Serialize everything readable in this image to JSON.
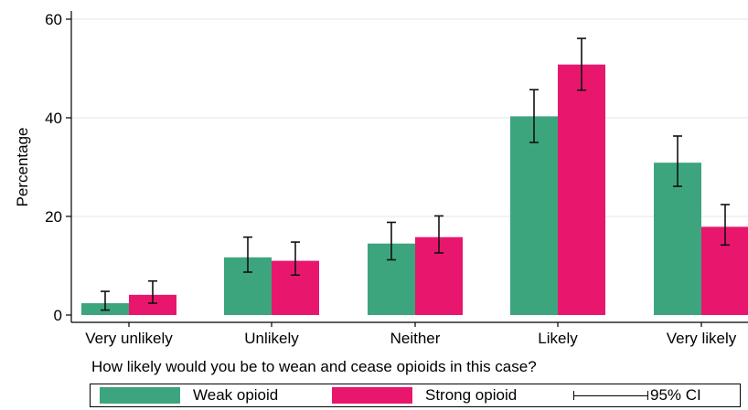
{
  "chart_data": {
    "type": "bar",
    "categories": [
      "Very unlikely",
      "Unlikely",
      "Neither",
      "Likely",
      "Very likely"
    ],
    "series": [
      {
        "name": "Weak opioid",
        "color": "#3da57e",
        "values": [
          2.4,
          11.7,
          14.5,
          40.3,
          30.9
        ],
        "ci_low": [
          1.0,
          8.7,
          11.2,
          35.0,
          26.1
        ],
        "ci_high": [
          4.8,
          15.8,
          18.8,
          45.7,
          36.3
        ]
      },
      {
        "name": "Strong opioid",
        "color": "#e8176d",
        "values": [
          4.1,
          11.0,
          15.8,
          50.8,
          17.9
        ],
        "ci_low": [
          2.4,
          8.1,
          12.6,
          45.6,
          14.2
        ],
        "ci_high": [
          6.9,
          14.8,
          20.1,
          56.1,
          22.4
        ]
      }
    ],
    "yticks": [
      0,
      20,
      40,
      60
    ],
    "ylim": [
      0,
      62
    ],
    "ylabel": "Percentage",
    "xlabel": "How likely would you be to wean and cease opioids in this case?",
    "legend": {
      "position": "bottom",
      "ci_label": "95% CI"
    },
    "grid": true
  }
}
